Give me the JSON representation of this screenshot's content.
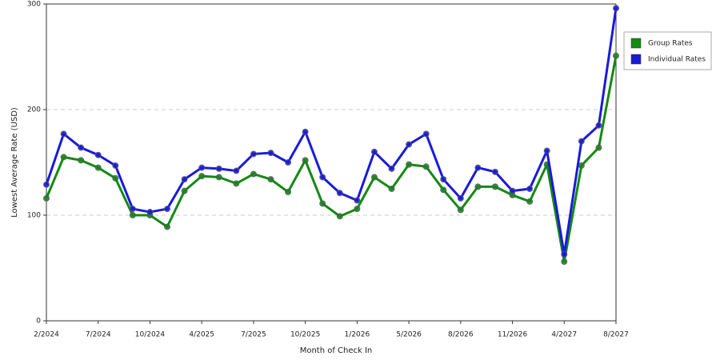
{
  "chart_data": {
    "type": "line",
    "xlabel": "Month of Check In",
    "ylabel": "Lowest Average Rate (USD)",
    "categories": [
      "2/2024",
      null,
      null,
      "7/2024",
      null,
      null,
      "10/2024",
      null,
      null,
      "4/2025",
      null,
      null,
      "7/2025",
      null,
      null,
      "10/2025",
      null,
      null,
      "1/2026",
      null,
      null,
      "5/2026",
      null,
      null,
      "8/2026",
      null,
      null,
      "11/2026",
      null,
      null,
      "4/2027",
      null,
      null,
      "8/2027"
    ],
    "series": [
      {
        "name": "Group Rates",
        "color": "#138a13",
        "values": [
          116,
          155,
          152,
          145,
          135,
          100,
          100,
          89,
          123,
          137,
          136,
          130,
          139,
          134,
          122,
          152,
          111,
          99,
          106,
          136,
          125,
          148,
          146,
          124,
          105,
          127,
          127,
          119,
          113,
          148,
          56,
          147,
          164,
          251
        ]
      },
      {
        "name": "Individual Rates",
        "color": "#1a1adb",
        "values": [
          129,
          177,
          164,
          157,
          147,
          106,
          103,
          106,
          134,
          145,
          144,
          142,
          158,
          159,
          150,
          179,
          136,
          121,
          114,
          160,
          144,
          167,
          177,
          134,
          116,
          145,
          141,
          123,
          125,
          161,
          63,
          170,
          185,
          296
        ]
      }
    ],
    "ylim": [
      0,
      300
    ],
    "yticks": [
      0,
      100,
      200,
      300
    ],
    "grid": true,
    "legend": "right"
  }
}
